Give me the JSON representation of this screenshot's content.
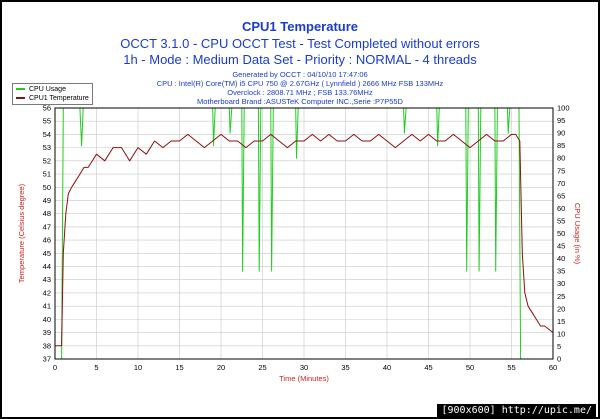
{
  "titles": {
    "main": "CPU1 Temperature",
    "line2": "OCCT 3.1.0 - CPU OCCT Test - Test Completed without errors",
    "line3": "1h - Mode : Medium Data Set - Priority : NORMAL - 4 threads"
  },
  "subtitles": {
    "generated": "Generated by OCCT : 04/10/10 17:47:06",
    "cpu": "CPU : Intel(R) Core(TM) i5 CPU 750 @ 2.67GHz ( Lynnfield ) 2666 MHz FSB 133MHz",
    "overclock": "Overclock : 2808.71 MHz ; FSB 133.76MHz",
    "motherboard": "Motherboard Brand :ASUSTeK Computer INC.,Serie :P7P55D"
  },
  "watermark": "[900x600] http://upic.me/",
  "colors": {
    "title": "#1a3ccc",
    "axis_text": "#cc2222",
    "cpu_usage": "#22cc22",
    "temperature": "#8b1010",
    "grid": "#c8c8c8",
    "plot_bg": "#ffffff"
  },
  "chart_data": {
    "type": "line",
    "title": "CPU1 Temperature",
    "xlabel": "Time (Minutes)",
    "ylabel": "Temperature (Celsius degree)",
    "y2label": "CPU Usage (in %)",
    "xlim": [
      0,
      60
    ],
    "ylim": [
      37,
      56
    ],
    "y2lim": [
      0,
      100
    ],
    "x_ticks": [
      0,
      5,
      10,
      15,
      20,
      25,
      30,
      35,
      40,
      45,
      50,
      55,
      60
    ],
    "y_ticks": [
      37,
      38,
      39,
      40,
      41,
      42,
      43,
      44,
      45,
      46,
      47,
      48,
      49,
      50,
      51,
      52,
      53,
      54,
      55,
      56
    ],
    "y2_ticks": [
      0,
      5,
      10,
      15,
      20,
      25,
      30,
      35,
      40,
      45,
      50,
      55,
      60,
      65,
      70,
      75,
      80,
      85,
      90,
      95,
      100
    ],
    "grid": true,
    "legend_position": "top-left",
    "series": [
      {
        "name": "CPU Usage",
        "axis": "y2",
        "color": "#22cc22",
        "x": [
          0,
          0.8,
          1.0,
          1.2,
          3.0,
          3.2,
          3.4,
          19.0,
          19.1,
          19.3,
          21.0,
          21.1,
          21.3,
          22.5,
          22.6,
          22.8,
          24.5,
          24.6,
          24.8,
          26.0,
          26.1,
          26.3,
          29.0,
          29.1,
          29.3,
          42.0,
          42.1,
          42.3,
          46.0,
          46.1,
          46.3,
          49.5,
          49.6,
          49.8,
          51.0,
          51.1,
          51.3,
          53.0,
          53.1,
          53.3,
          54.5,
          54.6,
          54.8,
          55.9,
          56.1,
          60
        ],
        "values": [
          0,
          0,
          100,
          100,
          100,
          85,
          100,
          100,
          85,
          100,
          100,
          90,
          100,
          100,
          35,
          100,
          100,
          35,
          100,
          100,
          35,
          100,
          100,
          80,
          100,
          100,
          90,
          100,
          100,
          85,
          100,
          100,
          35,
          100,
          100,
          35,
          100,
          100,
          35,
          100,
          100,
          90,
          100,
          100,
          0,
          0
        ]
      },
      {
        "name": "CPU1 Temperature",
        "axis": "y",
        "color": "#8b1010",
        "x": [
          0,
          0.5,
          0.8,
          1.0,
          1.3,
          1.6,
          2.0,
          2.5,
          3.0,
          3.5,
          4.0,
          5.0,
          6.0,
          7.0,
          8.0,
          9.0,
          10.0,
          11.0,
          12.0,
          13.0,
          14.0,
          15.0,
          16.0,
          17.0,
          18.0,
          19.0,
          20.0,
          21.0,
          22.0,
          23.0,
          24.0,
          25.0,
          26.0,
          27.0,
          28.0,
          29.0,
          30.0,
          31.0,
          32.0,
          33.0,
          34.0,
          35.0,
          36.0,
          37.0,
          38.0,
          39.0,
          40.0,
          41.0,
          42.0,
          43.0,
          44.0,
          45.0,
          46.0,
          47.0,
          48.0,
          49.0,
          50.0,
          51.0,
          52.0,
          53.0,
          54.0,
          55.0,
          55.5,
          56.0,
          56.3,
          56.6,
          57.0,
          57.5,
          58.0,
          58.5,
          59.0,
          60
        ],
        "values": [
          38,
          38,
          38,
          45,
          48,
          49.5,
          50,
          50.5,
          51,
          51.5,
          51.5,
          52.5,
          52,
          53,
          53,
          52,
          53,
          52.5,
          53.5,
          53,
          53.5,
          53.5,
          54,
          53.5,
          53,
          53.5,
          54,
          53.5,
          53.5,
          53,
          53.5,
          53.5,
          54,
          53.5,
          53,
          53.5,
          53.5,
          54,
          53.5,
          54,
          53.5,
          53.5,
          54,
          53.5,
          53.5,
          54,
          53.5,
          53,
          53.5,
          54,
          53.5,
          54,
          53.5,
          53.5,
          54,
          53.5,
          53,
          53.5,
          54,
          53.5,
          53.5,
          54,
          54,
          53.5,
          45,
          42,
          41,
          40.5,
          40,
          39.5,
          39.5,
          39
        ]
      }
    ]
  }
}
